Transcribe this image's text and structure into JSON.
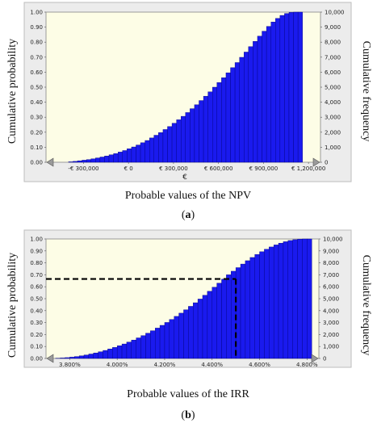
{
  "chart_data": [
    {
      "type": "bar",
      "subtype": "cumulative-histogram",
      "caption": "(a)",
      "xlabel": "Probable values of the NPV",
      "xunit": "€",
      "ylabel_left": "Cumulative probability",
      "ylabel_right": "Cumulative frequency",
      "xlim": [
        -550000,
        1280000
      ],
      "ylim": [
        0,
        1
      ],
      "y2lim": [
        0,
        10000
      ],
      "x_tick_values": [
        -300000,
        0,
        300000,
        600000,
        900000,
        1200000
      ],
      "x_tick_labels": [
        "-€ 300,000",
        "€ 0",
        "€ 300,000",
        "€ 600,000",
        "€ 900,000",
        "€ 1,200,000"
      ],
      "y_tick_labels": [
        "0.00",
        "0.10",
        "0.20",
        "0.30",
        "0.40",
        "0.50",
        "0.60",
        "0.70",
        "0.80",
        "0.90",
        "1.00"
      ],
      "y2_tick_labels": [
        "0",
        "1,000",
        "2,000",
        "3,000",
        "4,000",
        "5,000",
        "6,000",
        "7,000",
        "8,000",
        "9,000",
        "10,000"
      ],
      "bin_width": 30000,
      "bin_start": [
        -400000,
        -370000,
        -340000,
        -310000,
        -280000,
        -250000,
        -220000,
        -190000,
        -160000,
        -130000,
        -100000,
        -70000,
        -40000,
        -10000,
        20000,
        50000,
        80000,
        110000,
        140000,
        170000,
        200000,
        230000,
        260000,
        290000,
        320000,
        350000,
        380000,
        410000,
        440000,
        470000,
        500000,
        530000,
        560000,
        590000,
        620000,
        650000,
        680000,
        710000,
        740000,
        770000,
        800000,
        830000,
        860000,
        890000,
        920000,
        950000,
        980000,
        1010000,
        1040000,
        1070000,
        1100000,
        1130000
      ],
      "values": [
        0.003,
        0.006,
        0.01,
        0.014,
        0.018,
        0.023,
        0.029,
        0.035,
        0.042,
        0.05,
        0.058,
        0.068,
        0.078,
        0.09,
        0.102,
        0.115,
        0.13,
        0.145,
        0.162,
        0.18,
        0.198,
        0.218,
        0.238,
        0.26,
        0.283,
        0.306,
        0.331,
        0.357,
        0.383,
        0.411,
        0.44,
        0.469,
        0.5,
        0.531,
        0.563,
        0.596,
        0.63,
        0.664,
        0.699,
        0.734,
        0.77,
        0.805,
        0.84,
        0.873,
        0.905,
        0.934,
        0.958,
        0.978,
        0.991,
        0.998,
        1.0,
        1.0
      ],
      "grid": false,
      "colors": {
        "bar": "#1a1aee",
        "bar_edge": "#000080",
        "plot_bg": "#fdfde6",
        "frame_bg": "#ececec"
      }
    },
    {
      "type": "bar",
      "subtype": "cumulative-histogram",
      "caption": "(b)",
      "xlabel": "Probable values of the IRR",
      "ylabel_left": "Cumulative probability",
      "ylabel_right": "Cumulative frequency",
      "xlim": [
        3.7,
        4.85
      ],
      "ylim": [
        0,
        1
      ],
      "y2lim": [
        0,
        10000
      ],
      "x_tick_values": [
        3.8,
        4.0,
        4.2,
        4.4,
        4.6,
        4.8
      ],
      "x_tick_labels": [
        "3.800%",
        "4.000%",
        "4.200%",
        "4.400%",
        "4.600%",
        "4.800%"
      ],
      "y_tick_labels": [
        "0.00",
        "0.10",
        "0.20",
        "0.30",
        "0.40",
        "0.50",
        "0.60",
        "0.70",
        "0.80",
        "0.90",
        "1.00"
      ],
      "y2_tick_labels": [
        "0",
        "1,000",
        "2,000",
        "3,000",
        "4,000",
        "5,000",
        "6,000",
        "7,000",
        "8,000",
        "9,000",
        "10,000"
      ],
      "bin_width": 0.02,
      "bin_start": [
        3.74,
        3.76,
        3.78,
        3.8,
        3.82,
        3.84,
        3.86,
        3.88,
        3.9,
        3.92,
        3.94,
        3.96,
        3.98,
        4.0,
        4.02,
        4.04,
        4.06,
        4.08,
        4.1,
        4.12,
        4.14,
        4.16,
        4.18,
        4.2,
        4.22,
        4.24,
        4.26,
        4.28,
        4.3,
        4.32,
        4.34,
        4.36,
        4.38,
        4.4,
        4.42,
        4.44,
        4.46,
        4.48,
        4.5,
        4.52,
        4.54,
        4.56,
        4.58,
        4.6,
        4.62,
        4.64,
        4.66,
        4.68,
        4.7,
        4.72,
        4.74,
        4.76,
        4.78,
        4.8
      ],
      "values": [
        0.002,
        0.004,
        0.007,
        0.011,
        0.016,
        0.022,
        0.029,
        0.037,
        0.046,
        0.056,
        0.067,
        0.079,
        0.092,
        0.106,
        0.121,
        0.137,
        0.154,
        0.172,
        0.191,
        0.211,
        0.232,
        0.254,
        0.277,
        0.301,
        0.326,
        0.352,
        0.379,
        0.407,
        0.436,
        0.466,
        0.497,
        0.529,
        0.562,
        0.596,
        0.63,
        0.664,
        0.7,
        0.73,
        0.76,
        0.79,
        0.818,
        0.845,
        0.87,
        0.893,
        0.914,
        0.933,
        0.95,
        0.965,
        0.977,
        0.987,
        0.994,
        0.998,
        1.0,
        1.0
      ],
      "reference_line": {
        "x": 4.5,
        "y": 0.665,
        "style": "dashed"
      },
      "grid": false,
      "colors": {
        "bar": "#1a1aee",
        "bar_edge": "#000080",
        "plot_bg": "#fdfde6",
        "frame_bg": "#ececec",
        "reference_line": "#000000"
      }
    }
  ]
}
